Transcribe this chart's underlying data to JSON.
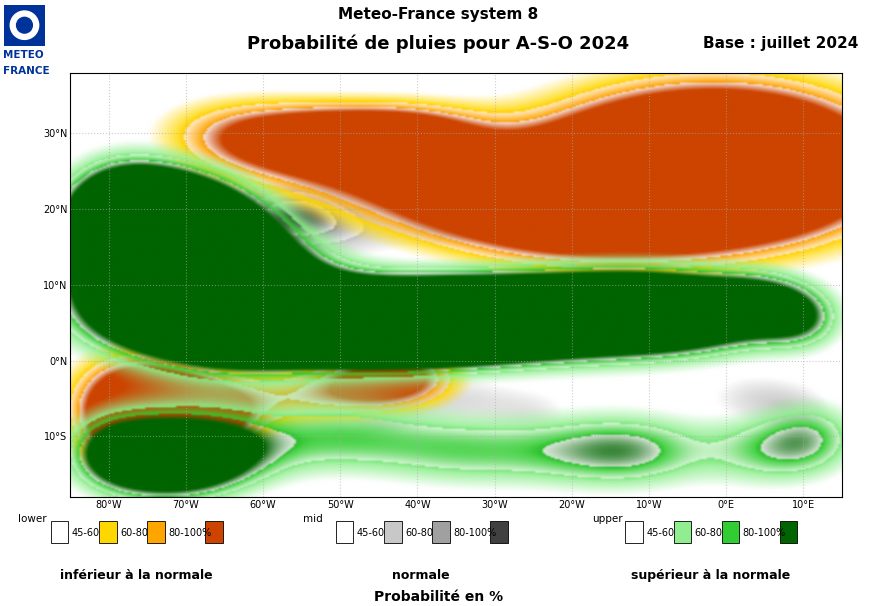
{
  "title1": "Meteo-France system 8",
  "title2": "Probabilité de pluies pour A-S-O 2024",
  "title3": "Base : juillet 2024",
  "xlabel_bottom": "Probabilité en %",
  "lon_min": -85,
  "lon_max": 15,
  "lat_min": -18,
  "lat_max": 38,
  "lon_ticks": [
    -80,
    -70,
    -60,
    -50,
    -40,
    -30,
    -20,
    -10,
    0,
    10
  ],
  "lat_ticks": [
    30,
    20,
    10,
    0,
    -10
  ],
  "background_color": "#ffffff",
  "map_bg": "#ffffff",
  "grid_color": "#aaaaaa",
  "grid_alpha": 0.6,
  "lower_colors": {
    "45-60": "#FFD700",
    "60-80": "#FFA500",
    "80-100": "#CC4400"
  },
  "mid_colors": {
    "45-60": "#C8C8C8",
    "60-80": "#A0A0A0",
    "80-100": "#404040"
  },
  "upper_colors": {
    "45-60": "#90EE90",
    "60-80": "#32CD32",
    "80-100": "#006400"
  },
  "legend_lower_label": "inférieur à la normale",
  "legend_mid_label": "normale",
  "legend_upper_label": "supérieur à la normale",
  "legend_lower_prefix": "lower",
  "legend_mid_prefix": "mid",
  "legend_upper_prefix": "upper",
  "fig_width": 8.77,
  "fig_height": 6.06,
  "dpi": 100
}
